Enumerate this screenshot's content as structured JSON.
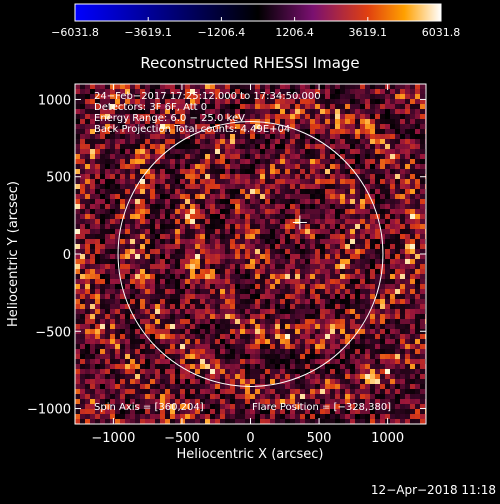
{
  "colorbar": {
    "ticks": [
      "-6031.8",
      "-3619.1",
      "-1206.4",
      "1206.4",
      "3619.1",
      "6031.8"
    ],
    "range": [
      -6031.8,
      6031.8
    ],
    "colormap": [
      "#0000ff",
      "#000000",
      "#7a1070",
      "#e04010",
      "#ffa000",
      "#ffffff"
    ]
  },
  "chart_data": {
    "type": "heatmap",
    "title": "Reconstructed RHESSI Image",
    "xlabel": "Heliocentric X (arcsec)",
    "ylabel": "Heliocentric Y (arcsec)",
    "xlim": [
      -1280,
      1280
    ],
    "ylim": [
      -1100,
      1100
    ],
    "xticks": [
      -1000,
      -500,
      0,
      500,
      1000
    ],
    "yticks": [
      -1000,
      -500,
      0,
      500,
      1000
    ],
    "xtick_labels": [
      "−1000",
      "−500",
      "0",
      "500",
      "1000"
    ],
    "ytick_labels": [
      "−1000",
      "−500",
      "0",
      "500",
      "1000"
    ],
    "solar_limb_radius_arcsec": 966,
    "solar_limb_center": [
      0,
      0
    ],
    "flare_marker": [
      360,
      204
    ],
    "info_lines": [
      "24−Feb−2017 17:25:12.000 to 17:34:50.000",
      "Detectors: 3F 6F, Att 0",
      "Energy Range: 6.0 − 25.0 keV",
      "Back Projection    Total counts: 4.49E+04"
    ],
    "spin_axis_label": "Spin Axis = [360,204]",
    "flare_position_label": "Flare Position = [−328,380]"
  },
  "footer": {
    "timestamp": "12−Apr−2018 11:18"
  }
}
